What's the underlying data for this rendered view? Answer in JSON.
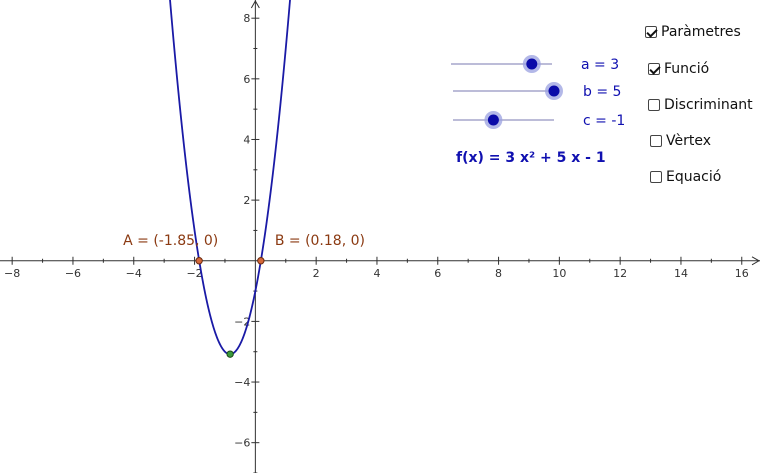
{
  "graph": {
    "x_ticks": [
      -8,
      -6,
      -4,
      -2,
      2,
      4,
      6,
      8,
      10,
      12,
      14,
      16
    ],
    "y_ticks": [
      -6,
      -4,
      -2,
      2,
      4,
      6,
      8
    ],
    "x_range": [
      -8.4,
      16.6
    ],
    "y_range": [
      -7,
      8.6
    ],
    "function": {
      "a": 3,
      "b": 5,
      "c": -1
    },
    "points": {
      "A": {
        "label": "A = (-1.85, 0)",
        "x": -1.85,
        "y": 0
      },
      "B": {
        "label": "B = (0.18, 0)",
        "x": 0.18,
        "y": 0
      },
      "vertex": {
        "x": -0.83,
        "y": -3.08
      }
    },
    "colors": {
      "curve": "#1a1aa6",
      "root_point": "#d4683a",
      "vertex_point": "#3a9a3a",
      "label": "#8b3a12"
    }
  },
  "sliders": [
    {
      "label": "a = 3",
      "fraction": 0.8
    },
    {
      "label": "b = 5",
      "fraction": 1.0
    },
    {
      "label": "c = -1",
      "fraction": 0.4
    }
  ],
  "formula": "f(x) = 3 x² + 5 x - 1",
  "checkboxes": [
    {
      "label": "Paràmetres",
      "checked": true
    },
    {
      "label": "Funció",
      "checked": true
    },
    {
      "label": "Discriminant",
      "checked": false
    },
    {
      "label": "Vèrtex",
      "checked": false
    },
    {
      "label": "Equació",
      "checked": false
    }
  ]
}
